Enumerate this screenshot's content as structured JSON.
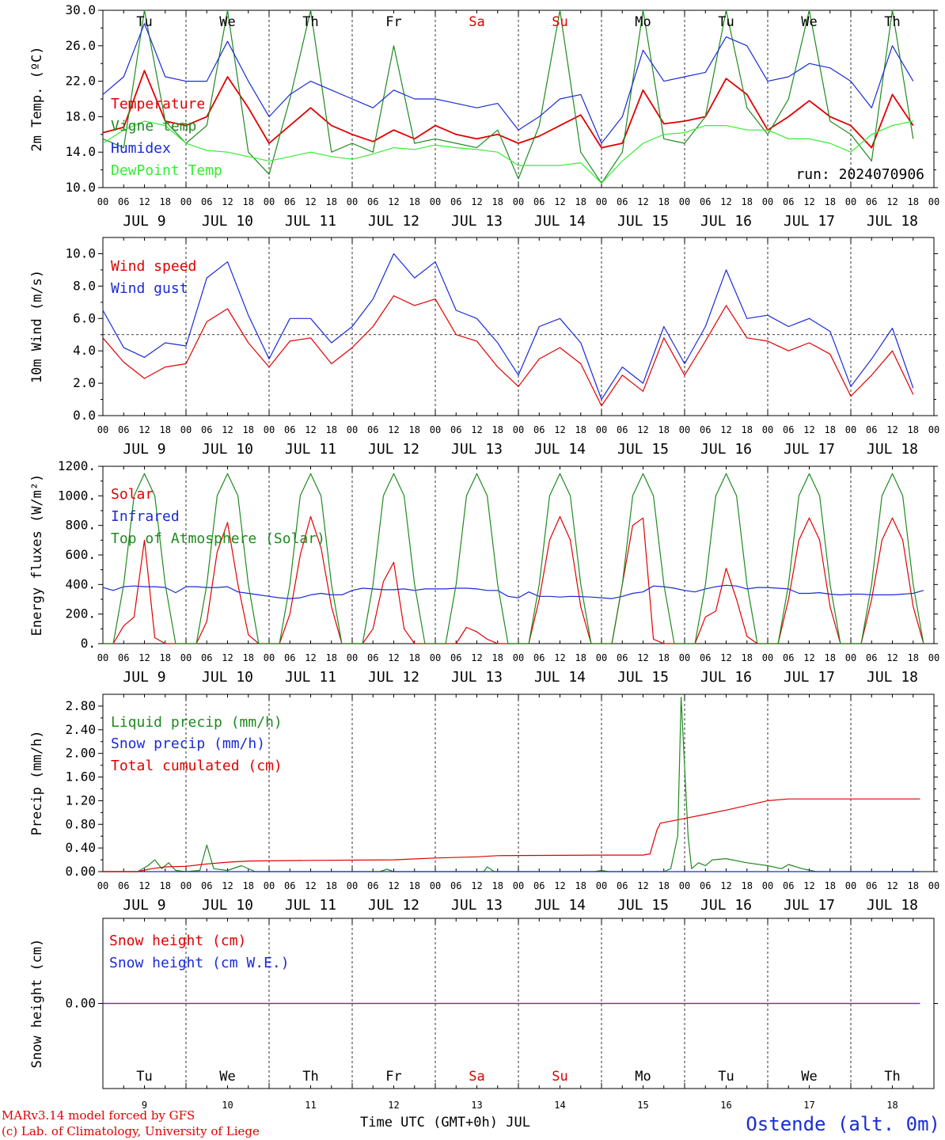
{
  "run_label": "run: 2024070906",
  "footer": {
    "model": "MARv3.14 model forced by GFS",
    "lab": "(c) Lab. of Climatology, University of Liege",
    "time_axis": "Time UTC (GMT+0h) JUL",
    "station": "Ostende (alt. 0m)"
  },
  "days": [
    {
      "abbr": "Tu",
      "date": "JUL  9",
      "num": "9",
      "weekend": false
    },
    {
      "abbr": "We",
      "date": "JUL 10",
      "num": "10",
      "weekend": false
    },
    {
      "abbr": "Th",
      "date": "JUL 11",
      "num": "11",
      "weekend": false
    },
    {
      "abbr": "Fr",
      "date": "JUL 12",
      "num": "12",
      "weekend": false
    },
    {
      "abbr": "Sa",
      "date": "JUL 13",
      "num": "13",
      "weekend": true
    },
    {
      "abbr": "Su",
      "date": "JUL 14",
      "num": "14",
      "weekend": true
    },
    {
      "abbr": "Mo",
      "date": "JUL 15",
      "num": "15",
      "weekend": false
    },
    {
      "abbr": "Tu",
      "date": "JUL 16",
      "num": "16",
      "weekend": false
    },
    {
      "abbr": "We",
      "date": "JUL 17",
      "num": "17",
      "weekend": false
    },
    {
      "abbr": "Th",
      "date": "JUL 18",
      "num": "18",
      "weekend": false
    }
  ],
  "hour_ticks": [
    "00",
    "06",
    "12",
    "18"
  ],
  "colors": {
    "red": "#e00000",
    "blue": "#1a2bd8",
    "green": "#1f8a1f",
    "lightgreen": "#33ee33",
    "purple": "#7a2f9a",
    "black": "#000000"
  },
  "chart_data": [
    {
      "type": "line",
      "ylabel": "2m Temp. (ºC)",
      "ylim": [
        10,
        30
      ],
      "yticks": [
        "10.0",
        "14.0",
        "18.0",
        "22.0",
        "26.0",
        "30.0"
      ],
      "x_hours": [
        0,
        6,
        12,
        18,
        24,
        30,
        36,
        42,
        48,
        54,
        60,
        66,
        72,
        78,
        84,
        90,
        96,
        102,
        108,
        114,
        120,
        126,
        132,
        138,
        144,
        150,
        156,
        162,
        168,
        174,
        180,
        186,
        192,
        198,
        204,
        210,
        216,
        222,
        228,
        234
      ],
      "series": [
        {
          "name": "Temperature",
          "color": "red",
          "values": [
            16.2,
            16.8,
            23.2,
            17.5,
            17.0,
            18.0,
            22.5,
            19.0,
            15.0,
            17.0,
            19.0,
            17.0,
            16.0,
            15.2,
            16.5,
            15.5,
            17.0,
            16.0,
            15.5,
            16.0,
            15.0,
            15.8,
            17.0,
            18.2,
            14.5,
            15.0,
            21.0,
            17.2,
            17.5,
            18.0,
            22.3,
            20.5,
            16.5,
            18.0,
            19.8,
            18.0,
            17.0,
            14.5,
            20.5,
            17.0
          ]
        },
        {
          "name": "Vigne temp",
          "color": "green",
          "values": [
            15.5,
            14.5,
            30.0,
            17.5,
            15.0,
            17.0,
            30.0,
            14.0,
            11.5,
            20.0,
            30.0,
            14.0,
            15.0,
            14.0,
            26.0,
            15.0,
            15.5,
            15.0,
            14.5,
            16.5,
            11.0,
            17.0,
            30.0,
            14.0,
            10.5,
            14.0,
            30.0,
            15.5,
            15.0,
            18.0,
            30.0,
            19.0,
            16.0,
            20.0,
            30.0,
            17.5,
            16.0,
            13.0,
            30.0,
            15.5
          ]
        },
        {
          "name": "Humidex",
          "color": "blue",
          "values": [
            20.5,
            22.5,
            28.5,
            22.5,
            22.0,
            22.0,
            26.5,
            22.0,
            18.0,
            20.5,
            22.0,
            21.0,
            20.0,
            19.0,
            21.0,
            20.0,
            20.0,
            19.5,
            19.0,
            19.5,
            16.5,
            18.0,
            20.0,
            20.5,
            15.0,
            18.0,
            25.5,
            22.0,
            22.5,
            23.0,
            27.0,
            26.0,
            22.0,
            22.5,
            24.0,
            23.5,
            22.0,
            19.0,
            26.0,
            22.0
          ]
        },
        {
          "name": "DewPoint Temp",
          "color": "lightgreen",
          "values": [
            15.0,
            16.5,
            17.5,
            17.0,
            15.0,
            14.2,
            14.0,
            13.5,
            13.0,
            13.5,
            14.0,
            13.5,
            13.2,
            13.8,
            14.5,
            14.3,
            14.8,
            14.5,
            14.3,
            14.0,
            12.5,
            12.5,
            12.5,
            12.8,
            10.5,
            13.0,
            15.0,
            16.0,
            16.2,
            17.0,
            17.0,
            16.5,
            16.5,
            15.5,
            15.5,
            15.0,
            14.0,
            16.0,
            17.0,
            17.5
          ]
        }
      ]
    },
    {
      "type": "line",
      "ylabel": "10m Wind (m/s)",
      "ylim": [
        0,
        11
      ],
      "yticks": [
        "0.0",
        "2.0",
        "4.0",
        "6.0",
        "8.0",
        "10.0"
      ],
      "reference_line": 5.0,
      "x_hours": [
        0,
        6,
        12,
        18,
        24,
        30,
        36,
        42,
        48,
        54,
        60,
        66,
        72,
        78,
        84,
        90,
        96,
        102,
        108,
        114,
        120,
        126,
        132,
        138,
        144,
        150,
        156,
        162,
        168,
        174,
        180,
        186,
        192,
        198,
        204,
        210,
        216,
        222,
        228,
        234
      ],
      "series": [
        {
          "name": "Wind speed",
          "color": "red",
          "values": [
            4.8,
            3.3,
            2.3,
            3.0,
            3.2,
            5.8,
            6.6,
            4.5,
            3.0,
            4.6,
            4.8,
            3.2,
            4.2,
            5.5,
            7.4,
            6.8,
            7.2,
            5.0,
            4.6,
            3.0,
            1.8,
            3.5,
            4.2,
            3.2,
            0.6,
            2.5,
            1.5,
            4.8,
            2.5,
            4.6,
            6.8,
            4.8,
            4.6,
            4.0,
            4.5,
            3.8,
            1.2,
            2.5,
            4.0,
            1.3
          ]
        },
        {
          "name": "Wind gust",
          "color": "blue",
          "values": [
            6.5,
            4.2,
            3.6,
            4.5,
            4.3,
            8.5,
            9.5,
            6.2,
            3.5,
            6.0,
            6.0,
            4.5,
            5.5,
            7.2,
            10.0,
            8.5,
            9.5,
            6.5,
            6.0,
            4.5,
            2.5,
            5.5,
            6.0,
            4.5,
            1.0,
            3.0,
            2.0,
            5.5,
            3.2,
            5.5,
            9.0,
            6.0,
            6.2,
            5.5,
            6.0,
            5.2,
            1.8,
            3.5,
            5.4,
            1.7
          ]
        }
      ]
    },
    {
      "type": "line",
      "ylabel": "Energy fluxes (W/m²)",
      "ylim": [
        0,
        1200
      ],
      "yticks": [
        "0.",
        "200.",
        "400.",
        "600.",
        "800.",
        "1000.",
        "1200."
      ],
      "x_hours": [
        0,
        3,
        6,
        9,
        12,
        15,
        18,
        21,
        24,
        27,
        30,
        33,
        36,
        39,
        42,
        45,
        48,
        51,
        54,
        57,
        60,
        63,
        66,
        69,
        72,
        75,
        78,
        81,
        84,
        87,
        90,
        93,
        96,
        99,
        102,
        105,
        108,
        111,
        114,
        117,
        120,
        123,
        126,
        129,
        132,
        135,
        138,
        141,
        144,
        147,
        150,
        153,
        156,
        159,
        162,
        165,
        168,
        171,
        174,
        177,
        180,
        183,
        186,
        189,
        192,
        195,
        198,
        201,
        204,
        207,
        210,
        213,
        216,
        219,
        222,
        225,
        228,
        231,
        234,
        237
      ],
      "series": [
        {
          "name": "Solar",
          "color": "red",
          "values": [
            0,
            0,
            120,
            180,
            700,
            40,
            0,
            0,
            0,
            0,
            150,
            620,
            820,
            400,
            60,
            0,
            0,
            0,
            200,
            600,
            860,
            650,
            250,
            0,
            0,
            0,
            100,
            420,
            550,
            100,
            0,
            0,
            0,
            0,
            0,
            110,
            80,
            30,
            0,
            0,
            0,
            0,
            300,
            700,
            860,
            700,
            250,
            0,
            0,
            0,
            400,
            800,
            850,
            30,
            0,
            0,
            0,
            0,
            180,
            220,
            510,
            300,
            50,
            0,
            0,
            0,
            300,
            700,
            850,
            700,
            250,
            0,
            0,
            0,
            300,
            700,
            850,
            700,
            250,
            0
          ]
        },
        {
          "name": "Infrared",
          "color": "blue",
          "values": [
            380,
            360,
            385,
            390,
            385,
            385,
            380,
            345,
            385,
            385,
            380,
            380,
            385,
            350,
            340,
            330,
            320,
            310,
            305,
            310,
            330,
            340,
            330,
            330,
            360,
            375,
            370,
            365,
            365,
            370,
            360,
            370,
            370,
            370,
            375,
            375,
            370,
            360,
            360,
            320,
            310,
            350,
            320,
            320,
            315,
            320,
            318,
            315,
            310,
            305,
            320,
            340,
            350,
            390,
            385,
            375,
            360,
            350,
            370,
            385,
            395,
            390,
            370,
            380,
            380,
            375,
            370,
            340,
            340,
            345,
            335,
            330,
            335,
            335,
            330,
            330,
            330,
            335,
            340,
            360
          ]
        },
        {
          "name": "Top of Atmosphere (Solar)",
          "color": "green",
          "values": [
            0,
            0,
            400,
            1000,
            1150,
            1000,
            400,
            0,
            0,
            0,
            400,
            1000,
            1150,
            1000,
            400,
            0,
            0,
            0,
            400,
            1000,
            1150,
            1000,
            400,
            0,
            0,
            0,
            400,
            1000,
            1150,
            1000,
            400,
            0,
            0,
            0,
            400,
            1000,
            1150,
            1000,
            400,
            0,
            0,
            0,
            400,
            1000,
            1150,
            1000,
            400,
            0,
            0,
            0,
            400,
            1000,
            1150,
            1000,
            400,
            0,
            0,
            0,
            400,
            1000,
            1150,
            1000,
            400,
            0,
            0,
            0,
            400,
            1000,
            1150,
            1000,
            400,
            0,
            0,
            0,
            400,
            1000,
            1150,
            1000,
            400,
            0
          ]
        }
      ]
    },
    {
      "type": "line",
      "ylabel": "Precip (mm/h)",
      "ylim": [
        0,
        3.0
      ],
      "yticks": [
        "0.00",
        "0.40",
        "0.80",
        "1.20",
        "1.60",
        "2.00",
        "2.40",
        "2.80"
      ],
      "series": [
        {
          "name": "Liquid precip (mm/h)",
          "color": "green",
          "points": [
            [
              0,
              0
            ],
            [
              10,
              0
            ],
            [
              13,
              0.1
            ],
            [
              15,
              0.2
            ],
            [
              17,
              0.05
            ],
            [
              19,
              0.15
            ],
            [
              21,
              0.02
            ],
            [
              24,
              0
            ],
            [
              28,
              0.02
            ],
            [
              30,
              0.45
            ],
            [
              32,
              0.05
            ],
            [
              36,
              0.02
            ],
            [
              40,
              0.1
            ],
            [
              44,
              0
            ],
            [
              80,
              0
            ],
            [
              82,
              0.04
            ],
            [
              84,
              0
            ],
            [
              110,
              0
            ],
            [
              111,
              0.08
            ],
            [
              113,
              0
            ],
            [
              142,
              0
            ],
            [
              144,
              0.02
            ],
            [
              146,
              0
            ],
            [
              150,
              0
            ],
            [
              162,
              0
            ],
            [
              164,
              0.05
            ],
            [
              166,
              0.6
            ],
            [
              167,
              2.95
            ],
            [
              169,
              0.6
            ],
            [
              170,
              0.05
            ],
            [
              172,
              0.15
            ],
            [
              174,
              0.1
            ],
            [
              176,
              0.2
            ],
            [
              180,
              0.22
            ],
            [
              186,
              0.15
            ],
            [
              192,
              0.1
            ],
            [
              196,
              0.05
            ],
            [
              198,
              0.12
            ],
            [
              202,
              0.05
            ],
            [
              206,
              0
            ],
            [
              236,
              0
            ]
          ]
        },
        {
          "name": "Snow precip (mm/h)",
          "color": "blue",
          "points": [
            [
              0,
              0
            ],
            [
              236,
              0
            ]
          ]
        },
        {
          "name": "Total cumulated (cm)",
          "color": "red",
          "points": [
            [
              0,
              0
            ],
            [
              10,
              0
            ],
            [
              14,
              0.05
            ],
            [
              18,
              0.08
            ],
            [
              24,
              0.09
            ],
            [
              30,
              0.13
            ],
            [
              36,
              0.16
            ],
            [
              42,
              0.18
            ],
            [
              60,
              0.19
            ],
            [
              84,
              0.2
            ],
            [
              96,
              0.23
            ],
            [
              108,
              0.25
            ],
            [
              114,
              0.27
            ],
            [
              144,
              0.28
            ],
            [
              156,
              0.28
            ],
            [
              158,
              0.3
            ],
            [
              160,
              0.7
            ],
            [
              161,
              0.82
            ],
            [
              168,
              0.9
            ],
            [
              174,
              0.97
            ],
            [
              180,
              1.04
            ],
            [
              186,
              1.12
            ],
            [
              192,
              1.2
            ],
            [
              198,
              1.23
            ],
            [
              210,
              1.23
            ],
            [
              236,
              1.23
            ]
          ]
        }
      ]
    },
    {
      "type": "line",
      "ylabel": "Snow height (cm)",
      "yticks": [
        "0.00"
      ],
      "series": [
        {
          "name": "Snow height (cm)",
          "color": "red",
          "points": [
            [
              0,
              0
            ],
            [
              236,
              0
            ]
          ]
        },
        {
          "name": "Snow height (cm W.E.)",
          "color": "blue",
          "points": [
            [
              0,
              0
            ],
            [
              236,
              0
            ]
          ]
        }
      ]
    }
  ]
}
